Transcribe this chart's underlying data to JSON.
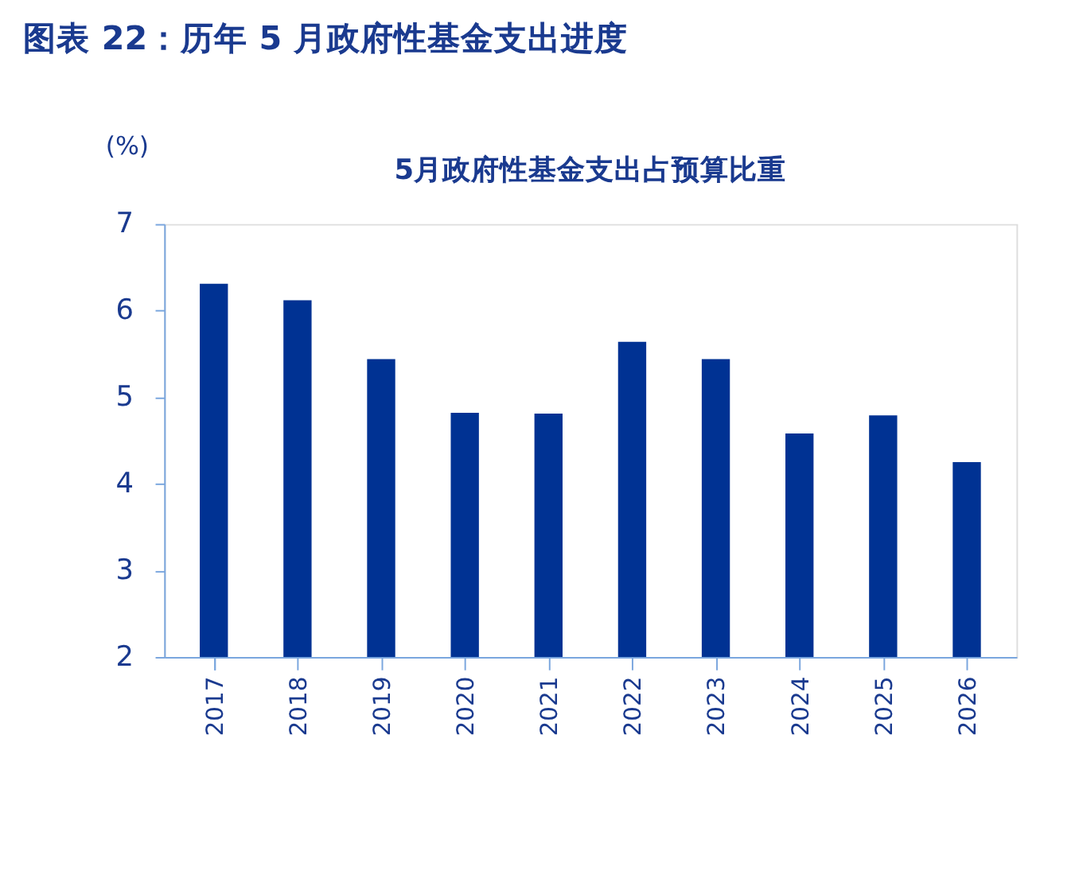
{
  "chart_data": {
    "type": "bar",
    "title": "图表 22：历年 5 月政府性基金支出进度",
    "subtitle": "5月政府性基金支出占预算比重",
    "ylabel": "(%)",
    "categories": [
      "2017",
      "2018",
      "2019",
      "2020",
      "2021",
      "2022",
      "2023",
      "2024",
      "2025",
      "2026"
    ],
    "values": [
      6.31,
      6.12,
      5.44,
      4.82,
      4.81,
      5.64,
      5.44,
      4.58,
      4.79,
      4.25
    ],
    "color": "#003293",
    "ylim": [
      2,
      7
    ],
    "yticks": [
      2,
      3,
      4,
      5,
      6,
      7
    ],
    "grid": false
  }
}
